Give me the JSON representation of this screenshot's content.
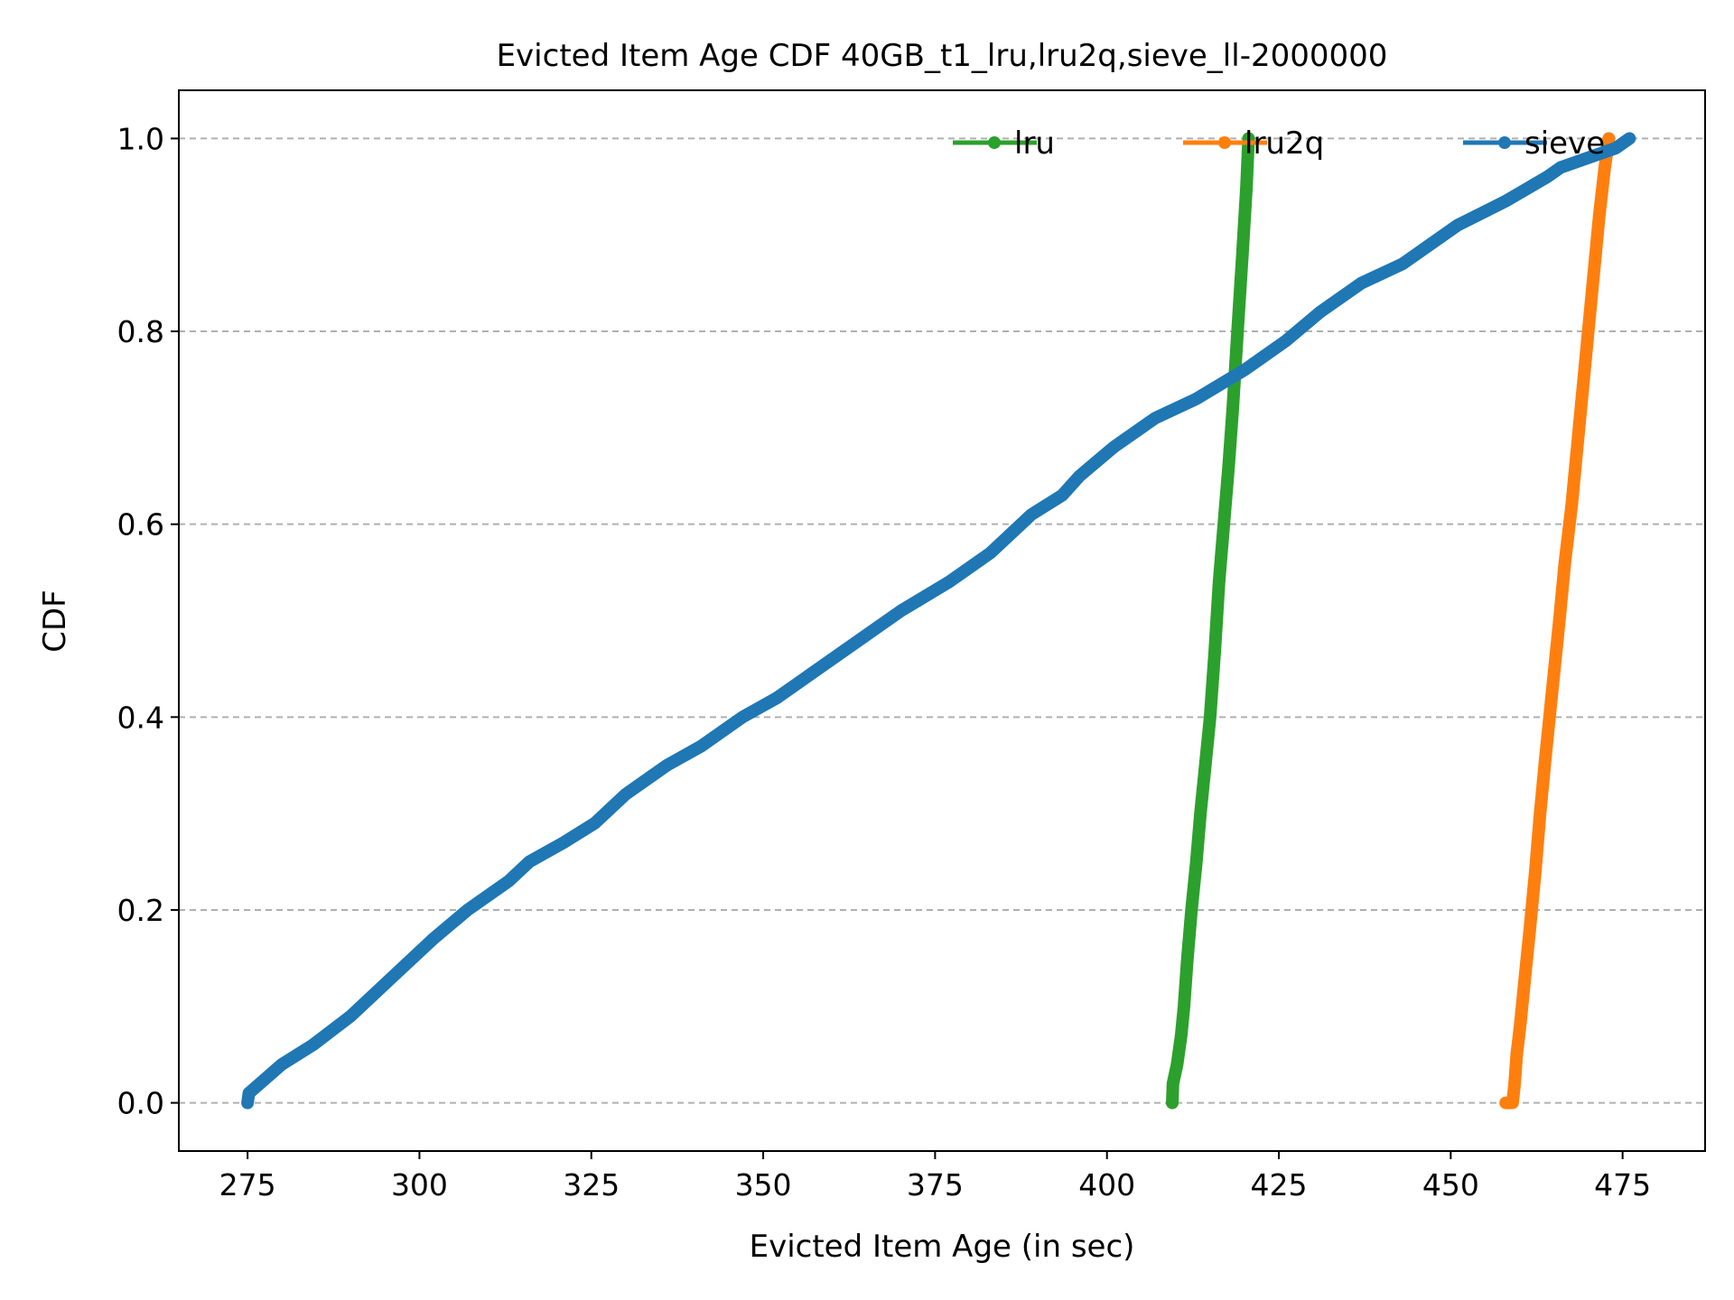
{
  "chart_data": {
    "type": "line",
    "title": "Evicted Item Age CDF 40GB_t1_lru,lru2q,sieve_ll-2000000",
    "xlabel": "Evicted Item Age (in sec)",
    "ylabel": "CDF",
    "xlim": [
      265,
      487
    ],
    "ylim": [
      -0.05,
      1.05
    ],
    "xticks": [
      275,
      300,
      325,
      350,
      375,
      400,
      425,
      450,
      475
    ],
    "xtick_labels": [
      "275",
      "300",
      "325",
      "350",
      "375",
      "400",
      "425",
      "450",
      "475"
    ],
    "yticks": [
      0.0,
      0.2,
      0.4,
      0.6,
      0.8,
      1.0
    ],
    "ytick_labels": [
      "0.0",
      "0.2",
      "0.4",
      "0.6",
      "0.8",
      "1.0"
    ],
    "grid": "y-dashed",
    "legend": "top-right",
    "series": [
      {
        "name": "lru",
        "color": "#2ca02c",
        "x": [
          409.5,
          409.6,
          410.2,
          410.8,
          411.2,
          411.7,
          412.3,
          413.0,
          413.6,
          414.3,
          415.0,
          415.7,
          416.3,
          417.0,
          417.7,
          418.3,
          419.0,
          419.7,
          420.3,
          420.6
        ],
        "y": [
          0.0,
          0.02,
          0.04,
          0.07,
          0.1,
          0.15,
          0.2,
          0.25,
          0.3,
          0.35,
          0.4,
          0.47,
          0.54,
          0.6,
          0.66,
          0.72,
          0.8,
          0.88,
          0.95,
          1.0
        ]
      },
      {
        "name": "lru2q",
        "color": "#ff7f0e",
        "x": [
          458.0,
          459.0,
          459.3,
          459.6,
          460.1,
          460.8,
          461.5,
          462.3,
          463.0,
          463.8,
          464.8,
          465.8,
          466.6,
          467.6,
          468.4,
          469.2,
          470.0,
          470.8,
          471.6,
          472.4,
          473.0
        ],
        "y": [
          0.0,
          0.0,
          0.02,
          0.05,
          0.08,
          0.13,
          0.18,
          0.24,
          0.3,
          0.36,
          0.43,
          0.5,
          0.56,
          0.62,
          0.68,
          0.74,
          0.8,
          0.86,
          0.92,
          0.97,
          1.0
        ]
      },
      {
        "name": "sieve",
        "color": "#1f77b4",
        "x": [
          275.0,
          275.2,
          280.0,
          284.5,
          290.0,
          296.0,
          302.0,
          307.0,
          313.0,
          316.0,
          321.0,
          325.5,
          330.0,
          334.0,
          336.0,
          341.0,
          347.0,
          352.0,
          358.0,
          364.0,
          370.0,
          377.0,
          383.0,
          389.0,
          393.5,
          396.0,
          401.0,
          407.0,
          413.0,
          420.0,
          426.0,
          431.0,
          437.0,
          443.0,
          447.0,
          451.0,
          458.0,
          464.0,
          466.0,
          472.0,
          474.0,
          476.0
        ],
        "y": [
          0.0,
          0.01,
          0.04,
          0.06,
          0.09,
          0.13,
          0.17,
          0.2,
          0.23,
          0.25,
          0.27,
          0.29,
          0.32,
          0.34,
          0.35,
          0.37,
          0.4,
          0.42,
          0.45,
          0.48,
          0.51,
          0.54,
          0.57,
          0.61,
          0.63,
          0.65,
          0.68,
          0.71,
          0.73,
          0.76,
          0.79,
          0.82,
          0.85,
          0.87,
          0.89,
          0.91,
          0.935,
          0.96,
          0.97,
          0.985,
          0.99,
          1.0
        ]
      }
    ]
  }
}
